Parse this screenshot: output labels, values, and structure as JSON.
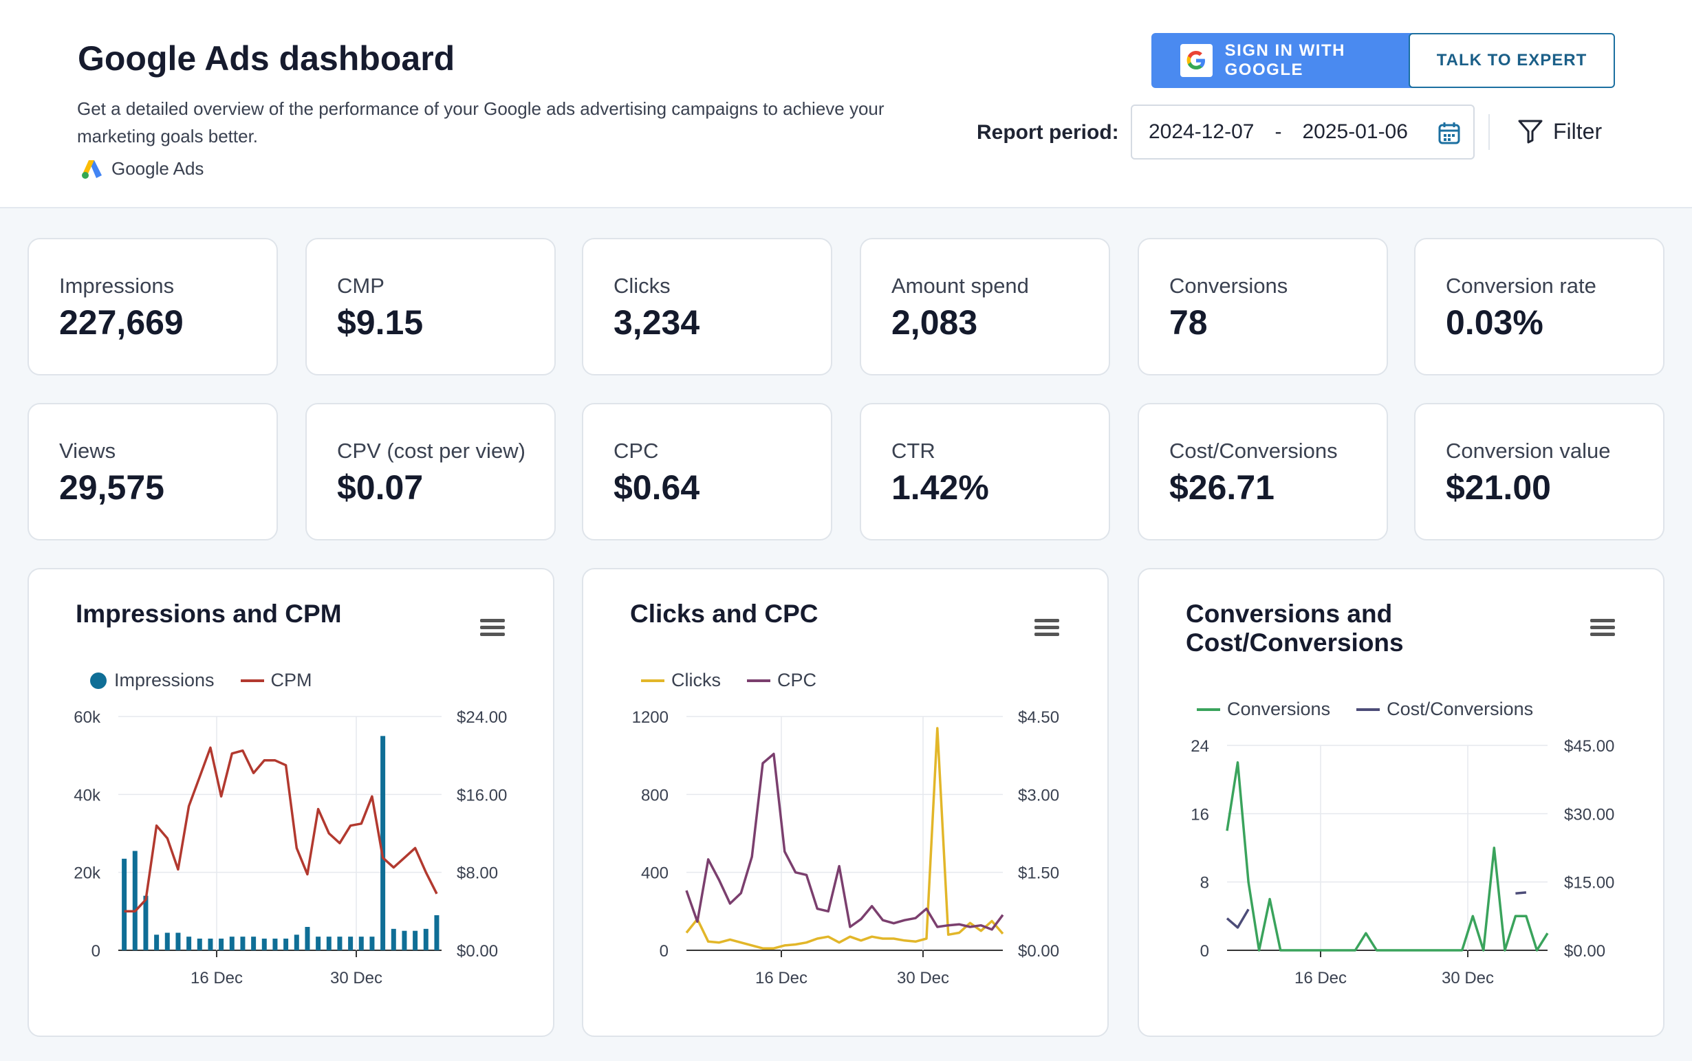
{
  "header": {
    "title": "Google Ads dashboard",
    "description": "Get a detailed overview of the performance of your Google ads advertising campaigns to achieve your marketing goals better.",
    "source_label": "Google Ads",
    "sign_in_label": "SIGN IN WITH GOOGLE",
    "expert_label": "TALK TO EXPERT",
    "report_period_label": "Report period:",
    "date_from": "2024-12-07",
    "date_sep": "-",
    "date_to": "2025-01-06",
    "filter_label": "Filter"
  },
  "kpis": [
    {
      "label": "Impressions",
      "value": "227,669"
    },
    {
      "label": "CMP",
      "value": "$9.15"
    },
    {
      "label": "Clicks",
      "value": "3,234"
    },
    {
      "label": "Amount spend",
      "value": "2,083"
    },
    {
      "label": "Conversions",
      "value": "78"
    },
    {
      "label": "Conversion rate",
      "value": "0.03%"
    },
    {
      "label": "Views",
      "value": "29,575"
    },
    {
      "label": "CPV (cost per view)",
      "value": "$0.07"
    },
    {
      "label": "CPC",
      "value": "$0.64"
    },
    {
      "label": "CTR",
      "value": "1.42%"
    },
    {
      "label": "Cost/Conversions",
      "value": "$26.71"
    },
    {
      "label": "Conversion value",
      "value": "$21.00"
    }
  ],
  "colors": {
    "impressions": "#0f6e96",
    "cpm": "#b2392f",
    "clicks": "#e2b629",
    "cpc": "#7b3f6e",
    "conversions": "#3aa35c",
    "cost_conversions": "#4c4c78",
    "google_blue": "#4a8af0"
  },
  "chart_data": [
    {
      "type": "bar",
      "title": "Impressions and CPM",
      "x_ticks": [
        "16 Dec",
        "30 Dec"
      ],
      "y_left_ticks": [
        "60k",
        "40k",
        "20k",
        "0"
      ],
      "y_right_ticks": [
        "$24.00",
        "$16.00",
        "$8.00",
        "$0.00"
      ],
      "ylim_left": [
        0,
        60000
      ],
      "ylim_right": [
        0,
        24
      ],
      "series": [
        {
          "name": "Impressions",
          "type": "bar",
          "axis": "left",
          "values": [
            23500,
            25500,
            14000,
            4000,
            4500,
            4500,
            3500,
            3000,
            3000,
            3000,
            3500,
            3500,
            3500,
            3000,
            3000,
            3000,
            4000,
            6000,
            3500,
            3500,
            3500,
            3500,
            3500,
            3500,
            55000,
            5500,
            5000,
            5000,
            5500,
            9000
          ]
        },
        {
          "name": "CPM",
          "type": "line",
          "axis": "right",
          "values": [
            4.0,
            4.0,
            5.2,
            12.8,
            11.5,
            8.3,
            14.8,
            17.8,
            20.8,
            15.8,
            20.2,
            20.5,
            18.2,
            19.5,
            19.5,
            19.0,
            10.5,
            7.8,
            14.5,
            12.0,
            11.0,
            12.8,
            13.0,
            15.8,
            9.5,
            8.5,
            9.5,
            10.5,
            8.0,
            5.8
          ]
        }
      ]
    },
    {
      "type": "line",
      "title": "Clicks and CPC",
      "x_ticks": [
        "16 Dec",
        "30 Dec"
      ],
      "y_left_ticks": [
        "1200",
        "800",
        "400",
        "0"
      ],
      "y_right_ticks": [
        "$4.50",
        "$3.00",
        "$1.50",
        "$0.00"
      ],
      "ylim_left": [
        0,
        1200
      ],
      "ylim_right": [
        0,
        4.5
      ],
      "series": [
        {
          "name": "Clicks",
          "axis": "left",
          "values": [
            90,
            160,
            45,
            40,
            55,
            40,
            25,
            10,
            10,
            25,
            30,
            40,
            60,
            70,
            40,
            70,
            50,
            70,
            60,
            60,
            50,
            45,
            60,
            1140,
            80,
            90,
            140,
            100,
            150,
            85
          ]
        },
        {
          "name": "CPC",
          "axis": "right",
          "values": [
            1.15,
            0.55,
            1.75,
            1.35,
            0.9,
            1.1,
            1.8,
            3.6,
            3.78,
            1.9,
            1.5,
            1.45,
            0.8,
            0.75,
            1.62,
            0.45,
            0.6,
            0.85,
            0.58,
            0.52,
            0.58,
            0.62,
            0.8,
            0.45,
            0.48,
            0.5,
            0.45,
            0.48,
            0.4,
            0.68
          ]
        }
      ]
    },
    {
      "type": "line",
      "title": "Conversions and Cost/Conversions",
      "x_ticks": [
        "16 Dec",
        "30 Dec"
      ],
      "y_left_ticks": [
        "24",
        "16",
        "8",
        "0"
      ],
      "y_right_ticks": [
        "$45.00",
        "$30.00",
        "$15.00",
        "$0.00"
      ],
      "ylim_left": [
        0,
        24
      ],
      "ylim_right": [
        0,
        45
      ],
      "series": [
        {
          "name": "Conversions",
          "axis": "left",
          "values": [
            14,
            22,
            8,
            0,
            6,
            0,
            0,
            0,
            0,
            0,
            0,
            0,
            0,
            2,
            0,
            0,
            0,
            0,
            0,
            0,
            0,
            0,
            0,
            4,
            0,
            12,
            0,
            4,
            4,
            0,
            2
          ]
        },
        {
          "name": "Cost/Conversions",
          "axis": "right",
          "values": [
            7,
            5,
            9,
            null,
            null,
            null,
            null,
            null,
            null,
            null,
            null,
            null,
            null,
            null,
            null,
            null,
            null,
            null,
            null,
            null,
            null,
            null,
            null,
            null,
            null,
            null,
            null,
            12.5,
            12.7,
            null,
            null
          ]
        }
      ]
    }
  ]
}
